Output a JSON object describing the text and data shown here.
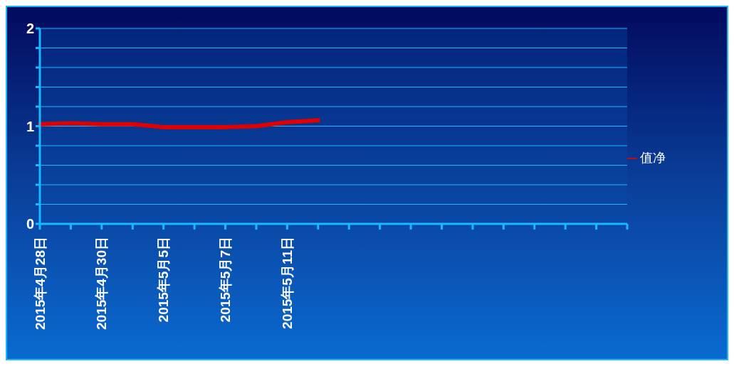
{
  "chart_data": {
    "type": "line",
    "categories": [
      "2015年4月28日",
      null,
      "2015年4月30日",
      null,
      "2015年5月5日",
      null,
      "2015年5月7日",
      null,
      "2015年5月11日",
      null,
      null,
      null,
      null,
      null,
      null,
      null,
      null,
      null,
      null,
      null
    ],
    "series": [
      {
        "name": "值净",
        "color": "#e00000",
        "values": [
          1.02,
          1.03,
          1.02,
          1.02,
          0.99,
          0.99,
          0.99,
          1.0,
          1.04,
          1.06,
          null,
          null,
          null,
          null,
          null,
          null,
          null,
          null,
          null,
          null
        ]
      }
    ],
    "ylim": [
      0,
      2
    ],
    "yticks": [
      0,
      {
        "value": 0.2,
        "label": null
      },
      {
        "value": 0.4,
        "label": null
      },
      {
        "value": 0.6,
        "label": null
      },
      {
        "value": 0.8,
        "label": null
      },
      1,
      {
        "value": 1.2,
        "label": null
      },
      {
        "value": 1.4,
        "label": null
      },
      {
        "value": 1.6,
        "label": null
      },
      {
        "value": 1.8,
        "label": null
      },
      2
    ],
    "grid": "y",
    "legend": "right",
    "marker": "none",
    "line_style": "solid"
  }
}
